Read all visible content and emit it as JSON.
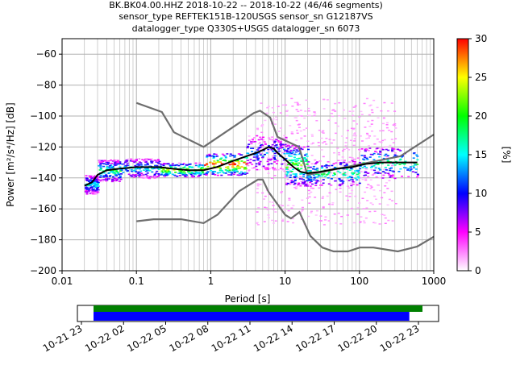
{
  "title_lines": [
    "BK.BK04.00.HHZ   2018-10-22 -- 2018-10-22  (46/46 segments)",
    "sensor_type REFTEK151B-120USGS sensor_sn G12187VS",
    "datalogger_type Q330S+USGS datalogger_sn 6073"
  ],
  "chart_data": {
    "type": "heatmap",
    "x_scale": "log",
    "xlabel": "Period [s]",
    "ylabel": "Power [m²/s⁴/Hz] [dB]",
    "xlim": [
      0.01,
      1000
    ],
    "ylim": [
      -200,
      -50
    ],
    "x_ticks": [
      {
        "value": 0.01,
        "label": "0.01"
      },
      {
        "value": 0.1,
        "label": "0.1"
      },
      {
        "value": 1,
        "label": "1"
      },
      {
        "value": 10,
        "label": "10"
      },
      {
        "value": 100,
        "label": "100"
      },
      {
        "value": 1000,
        "label": "1000"
      }
    ],
    "y_ticks": [
      {
        "value": -60,
        "label": "−60"
      },
      {
        "value": -80,
        "label": "−80"
      },
      {
        "value": -100,
        "label": "−100"
      },
      {
        "value": -120,
        "label": "−120"
      },
      {
        "value": -140,
        "label": "−140"
      },
      {
        "value": -160,
        "label": "−160"
      },
      {
        "value": -180,
        "label": "−180"
      },
      {
        "value": -200,
        "label": "−200"
      }
    ],
    "grid": true,
    "colorbar": {
      "label": "[%]",
      "range": [
        0,
        30
      ],
      "ticks": [
        {
          "value": 0,
          "label": "0"
        },
        {
          "value": 5,
          "label": "5"
        },
        {
          "value": 10,
          "label": "10"
        },
        {
          "value": 15,
          "label": "15"
        },
        {
          "value": 20,
          "label": "20"
        },
        {
          "value": 25,
          "label": "25"
        },
        {
          "value": 30,
          "label": "30"
        }
      ],
      "colors": [
        "#ffffff",
        "#ff00ff",
        "#0000ff",
        "#00ffff",
        "#00ff00",
        "#ffff00",
        "#ff0000"
      ]
    },
    "noise_models": {
      "high": [
        [
          0.1,
          -91.5
        ],
        [
          0.22,
          -97.4
        ],
        [
          0.32,
          -110.5
        ],
        [
          0.8,
          -120
        ],
        [
          3.8,
          -98
        ],
        [
          4.6,
          -96.5
        ],
        [
          6.3,
          -101
        ],
        [
          7.9,
          -113.5
        ],
        [
          15.4,
          -120
        ],
        [
          20,
          -138
        ],
        [
          354.8,
          -126
        ],
        [
          1000,
          -112
        ]
      ],
      "low": [
        [
          0.1,
          -168
        ],
        [
          0.17,
          -166.7
        ],
        [
          0.4,
          -166.7
        ],
        [
          0.8,
          -169.2
        ],
        [
          1.24,
          -163.7
        ],
        [
          2.4,
          -148.6
        ],
        [
          4.3,
          -141.1
        ],
        [
          5,
          -141.1
        ],
        [
          6,
          -149
        ],
        [
          10,
          -163.8
        ],
        [
          12,
          -166.2
        ],
        [
          15.6,
          -162.1
        ],
        [
          21.9,
          -177.5
        ],
        [
          31.6,
          -185
        ],
        [
          45,
          -187.5
        ],
        [
          70,
          -187.5
        ],
        [
          101,
          -185
        ],
        [
          154,
          -185
        ],
        [
          328,
          -187.5
        ],
        [
          600,
          -184.4
        ],
        [
          1000,
          -178
        ]
      ]
    },
    "mean_curve": [
      [
        0.02,
        -145
      ],
      [
        0.025,
        -143
      ],
      [
        0.03,
        -138
      ],
      [
        0.04,
        -135
      ],
      [
        0.06,
        -134
      ],
      [
        0.1,
        -133
      ],
      [
        0.2,
        -133
      ],
      [
        0.3,
        -134
      ],
      [
        0.5,
        -135
      ],
      [
        0.8,
        -135
      ],
      [
        1.2,
        -133
      ],
      [
        2,
        -129
      ],
      [
        3,
        -126
      ],
      [
        4,
        -124
      ],
      [
        5,
        -122
      ],
      [
        6,
        -120
      ],
      [
        7,
        -121
      ],
      [
        8,
        -124
      ],
      [
        10,
        -128
      ],
      [
        13,
        -133
      ],
      [
        16,
        -136
      ],
      [
        20,
        -137
      ],
      [
        30,
        -136
      ],
      [
        50,
        -134
      ],
      [
        80,
        -133
      ],
      [
        120,
        -131
      ],
      [
        200,
        -130
      ],
      [
        400,
        -130
      ],
      [
        600,
        -130
      ]
    ],
    "density_bands": [
      {
        "x": [
          0.02,
          0.03
        ],
        "y": [
          -150,
          -138
        ],
        "pct": 10
      },
      {
        "x": [
          0.03,
          0.06
        ],
        "y": [
          -142,
          -128
        ],
        "pct": 12
      },
      {
        "x": [
          0.06,
          0.2
        ],
        "y": [
          -140,
          -127
        ],
        "pct": 10
      },
      {
        "x": [
          0.2,
          0.8
        ],
        "y": [
          -139,
          -130
        ],
        "pct": 16
      },
      {
        "x": [
          0.8,
          3
        ],
        "y": [
          -138,
          -124
        ],
        "pct": 20
      },
      {
        "x": [
          3,
          10
        ],
        "y": [
          -135,
          -112
        ],
        "pct": 8
      },
      {
        "x": [
          10,
          20
        ],
        "y": [
          -145,
          -118
        ],
        "pct": 14
      },
      {
        "x": [
          20,
          100
        ],
        "y": [
          -145,
          -128
        ],
        "pct": 12
      },
      {
        "x": [
          100,
          600
        ],
        "y": [
          -140,
          -120
        ],
        "pct": 12
      }
    ],
    "sparse_region": {
      "x": [
        4,
        300
      ],
      "y": [
        -170,
        -88
      ],
      "pct": 2
    }
  },
  "timeline": {
    "tick_labels": [
      "10-21 23",
      "10-22 02",
      "10-22 05",
      "10-22 08",
      "10-22 11",
      "10-22 14",
      "10-22 17",
      "10-22 20",
      "10-22 23"
    ],
    "bars": [
      {
        "color": "#008000",
        "start": 0.0,
        "end": 1.0
      },
      {
        "color": "#0000ff",
        "start": 0.0,
        "end": 0.96
      }
    ]
  }
}
